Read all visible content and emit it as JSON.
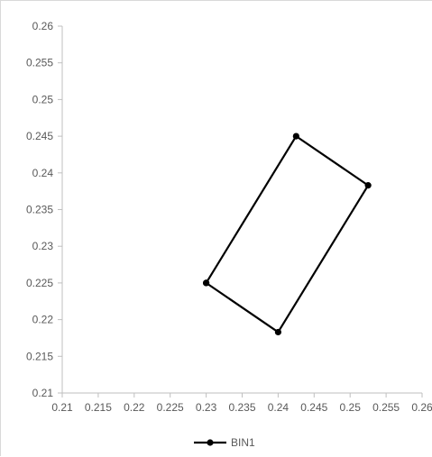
{
  "chart_data": {
    "type": "scatter",
    "title": "",
    "xlabel": "",
    "ylabel": "",
    "xlim": [
      0.21,
      0.26
    ],
    "ylim": [
      0.21,
      0.26
    ],
    "x_ticks": [
      "0.21",
      "0.215",
      "0.22",
      "0.225",
      "0.23",
      "0.235",
      "0.24",
      "0.245",
      "0.25",
      "0.255",
      "0.26"
    ],
    "y_ticks": [
      "0.21",
      "0.215",
      "0.22",
      "0.225",
      "0.23",
      "0.235",
      "0.24",
      "0.245",
      "0.25",
      "0.255",
      "0.26"
    ],
    "grid": false,
    "legend_position": "bottom",
    "series": [
      {
        "name": "BIN1",
        "color": "#000000",
        "marker": "circle",
        "line": "straight",
        "points": [
          {
            "x": 0.23,
            "y": 0.225
          },
          {
            "x": 0.2425,
            "y": 0.245
          },
          {
            "x": 0.2525,
            "y": 0.2383
          },
          {
            "x": 0.24,
            "y": 0.2183
          },
          {
            "x": 0.23,
            "y": 0.225
          }
        ]
      }
    ]
  }
}
